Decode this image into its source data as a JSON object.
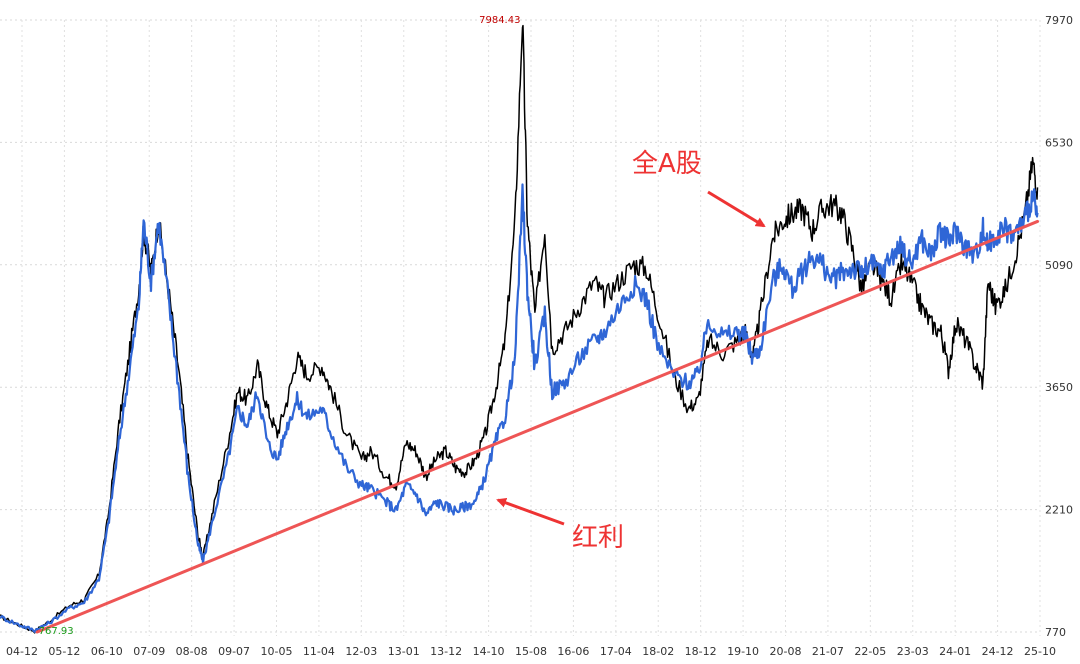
{
  "chart_data": {
    "type": "line",
    "title": "",
    "xlabel": "",
    "ylabel": "",
    "x_ticks": [
      "04-12",
      "05-12",
      "06-10",
      "07-09",
      "08-08",
      "09-07",
      "10-05",
      "11-04",
      "12-03",
      "13-01",
      "13-12",
      "14-10",
      "15-08",
      "16-06",
      "17-04",
      "18-02",
      "18-12",
      "19-10",
      "20-08",
      "21-07",
      "22-05",
      "23-03",
      "24-01",
      "24-12",
      "25-10"
    ],
    "y_ticks": [
      770,
      2210,
      3650,
      5090,
      6530,
      7970
    ],
    "ylim": [
      770,
      7970
    ],
    "xlim": [
      2004.9,
      2025.9
    ],
    "grid": true,
    "series": [
      {
        "name": "全A股",
        "color": "#000000",
        "points": [
          [
            2004.9,
            950
          ],
          [
            2005.3,
            850
          ],
          [
            2005.6,
            780
          ],
          [
            2005.9,
            900
          ],
          [
            2006.3,
            1080
          ],
          [
            2006.6,
            1150
          ],
          [
            2006.9,
            1450
          ],
          [
            2007.1,
            2200
          ],
          [
            2007.3,
            3200
          ],
          [
            2007.5,
            4000
          ],
          [
            2007.7,
            4800
          ],
          [
            2007.8,
            5500
          ],
          [
            2007.95,
            5000
          ],
          [
            2008.1,
            5600
          ],
          [
            2008.3,
            4800
          ],
          [
            2008.5,
            3900
          ],
          [
            2008.7,
            2800
          ],
          [
            2008.9,
            1900
          ],
          [
            2009.0,
            1650
          ],
          [
            2009.2,
            2200
          ],
          [
            2009.5,
            3000
          ],
          [
            2009.7,
            3600
          ],
          [
            2009.9,
            3500
          ],
          [
            2010.1,
            3900
          ],
          [
            2010.3,
            3400
          ],
          [
            2010.5,
            3100
          ],
          [
            2010.7,
            3500
          ],
          [
            2010.9,
            4000
          ],
          [
            2011.1,
            3800
          ],
          [
            2011.4,
            3900
          ],
          [
            2011.6,
            3600
          ],
          [
            2011.9,
            3100
          ],
          [
            2012.2,
            2800
          ],
          [
            2012.4,
            2900
          ],
          [
            2012.7,
            2600
          ],
          [
            2012.9,
            2500
          ],
          [
            2013.1,
            3000
          ],
          [
            2013.3,
            2900
          ],
          [
            2013.5,
            2600
          ],
          [
            2013.7,
            2800
          ],
          [
            2013.9,
            2900
          ],
          [
            2014.1,
            2700
          ],
          [
            2014.3,
            2650
          ],
          [
            2014.5,
            2800
          ],
          [
            2014.7,
            3100
          ],
          [
            2014.9,
            3600
          ],
          [
            2015.1,
            4200
          ],
          [
            2015.3,
            5600
          ],
          [
            2015.45,
            7984
          ],
          [
            2015.55,
            5600
          ],
          [
            2015.7,
            4500
          ],
          [
            2015.9,
            5500
          ],
          [
            2016.05,
            4100
          ],
          [
            2016.3,
            4300
          ],
          [
            2016.6,
            4600
          ],
          [
            2016.9,
            4900
          ],
          [
            2017.1,
            4700
          ],
          [
            2017.4,
            4900
          ],
          [
            2017.7,
            5100
          ],
          [
            2017.95,
            5050
          ],
          [
            2018.2,
            4500
          ],
          [
            2018.5,
            3800
          ],
          [
            2018.8,
            3400
          ],
          [
            2019.0,
            3500
          ],
          [
            2019.2,
            4200
          ],
          [
            2019.5,
            4050
          ],
          [
            2019.8,
            4200
          ],
          [
            2019.95,
            4300
          ],
          [
            2020.1,
            4000
          ],
          [
            2020.25,
            4500
          ],
          [
            2020.5,
            5400
          ],
          [
            2020.7,
            5600
          ],
          [
            2020.9,
            5700
          ],
          [
            2021.1,
            5750
          ],
          [
            2021.3,
            5500
          ],
          [
            2021.5,
            5750
          ],
          [
            2021.7,
            5800
          ],
          [
            2021.9,
            5700
          ],
          [
            2022.1,
            5300
          ],
          [
            2022.3,
            4800
          ],
          [
            2022.5,
            5100
          ],
          [
            2022.7,
            4900
          ],
          [
            2022.9,
            4700
          ],
          [
            2023.1,
            5100
          ],
          [
            2023.3,
            4900
          ],
          [
            2023.5,
            4600
          ],
          [
            2023.7,
            4400
          ],
          [
            2023.9,
            4300
          ],
          [
            2024.05,
            3850
          ],
          [
            2024.2,
            4400
          ],
          [
            2024.4,
            4200
          ],
          [
            2024.6,
            3900
          ],
          [
            2024.75,
            3700
          ],
          [
            2024.85,
            4900
          ],
          [
            2025.0,
            4600
          ],
          [
            2025.2,
            4800
          ],
          [
            2025.4,
            5200
          ],
          [
            2025.6,
            5700
          ],
          [
            2025.75,
            6300
          ],
          [
            2025.85,
            6000
          ]
        ]
      },
      {
        "name": "红利",
        "color": "#2f66d6",
        "points": [
          [
            2004.9,
            950
          ],
          [
            2005.3,
            850
          ],
          [
            2005.6,
            790
          ],
          [
            2005.9,
            880
          ],
          [
            2006.3,
            1050
          ],
          [
            2006.6,
            1120
          ],
          [
            2006.9,
            1400
          ],
          [
            2007.1,
            2100
          ],
          [
            2007.3,
            3000
          ],
          [
            2007.5,
            3800
          ],
          [
            2007.7,
            4600
          ],
          [
            2007.8,
            5600
          ],
          [
            2007.95,
            4900
          ],
          [
            2008.1,
            5600
          ],
          [
            2008.3,
            4700
          ],
          [
            2008.5,
            3700
          ],
          [
            2008.7,
            2600
          ],
          [
            2008.9,
            1800
          ],
          [
            2009.0,
            1600
          ],
          [
            2009.2,
            2100
          ],
          [
            2009.5,
            2800
          ],
          [
            2009.7,
            3400
          ],
          [
            2009.9,
            3200
          ],
          [
            2010.1,
            3600
          ],
          [
            2010.3,
            3000
          ],
          [
            2010.5,
            2800
          ],
          [
            2010.7,
            3200
          ],
          [
            2010.9,
            3500
          ],
          [
            2011.1,
            3300
          ],
          [
            2011.4,
            3400
          ],
          [
            2011.6,
            3100
          ],
          [
            2011.9,
            2700
          ],
          [
            2012.2,
            2500
          ],
          [
            2012.4,
            2450
          ],
          [
            2012.7,
            2300
          ],
          [
            2012.9,
            2200
          ],
          [
            2013.1,
            2500
          ],
          [
            2013.3,
            2400
          ],
          [
            2013.5,
            2150
          ],
          [
            2013.7,
            2300
          ],
          [
            2013.9,
            2250
          ],
          [
            2014.1,
            2200
          ],
          [
            2014.3,
            2250
          ],
          [
            2014.5,
            2300
          ],
          [
            2014.7,
            2600
          ],
          [
            2014.9,
            3000
          ],
          [
            2015.1,
            3300
          ],
          [
            2015.3,
            4000
          ],
          [
            2015.45,
            5900
          ],
          [
            2015.55,
            4800
          ],
          [
            2015.7,
            3900
          ],
          [
            2015.9,
            4500
          ],
          [
            2016.05,
            3600
          ],
          [
            2016.3,
            3700
          ],
          [
            2016.6,
            4000
          ],
          [
            2016.9,
            4200
          ],
          [
            2017.1,
            4300
          ],
          [
            2017.4,
            4600
          ],
          [
            2017.7,
            4850
          ],
          [
            2017.95,
            4700
          ],
          [
            2018.2,
            4100
          ],
          [
            2018.5,
            3800
          ],
          [
            2018.8,
            3700
          ],
          [
            2019.0,
            3800
          ],
          [
            2019.2,
            4450
          ],
          [
            2019.5,
            4250
          ],
          [
            2019.8,
            4300
          ],
          [
            2019.95,
            4250
          ],
          [
            2020.1,
            4000
          ],
          [
            2020.25,
            4100
          ],
          [
            2020.5,
            4900
          ],
          [
            2020.7,
            5100
          ],
          [
            2020.9,
            4800
          ],
          [
            2021.1,
            5000
          ],
          [
            2021.3,
            5200
          ],
          [
            2021.5,
            5100
          ],
          [
            2021.7,
            4900
          ],
          [
            2021.9,
            5000
          ],
          [
            2022.1,
            5050
          ],
          [
            2022.3,
            5000
          ],
          [
            2022.5,
            5100
          ],
          [
            2022.7,
            5000
          ],
          [
            2022.9,
            5200
          ],
          [
            2023.1,
            5300
          ],
          [
            2023.3,
            5100
          ],
          [
            2023.5,
            5400
          ],
          [
            2023.7,
            5200
          ],
          [
            2023.9,
            5500
          ],
          [
            2024.05,
            5350
          ],
          [
            2024.2,
            5500
          ],
          [
            2024.4,
            5300
          ],
          [
            2024.6,
            5200
          ],
          [
            2024.75,
            5500
          ],
          [
            2024.85,
            5300
          ],
          [
            2025.0,
            5450
          ],
          [
            2025.2,
            5500
          ],
          [
            2025.4,
            5450
          ],
          [
            2025.6,
            5650
          ],
          [
            2025.75,
            5900
          ],
          [
            2025.85,
            5700
          ]
        ]
      }
    ],
    "trend_line": {
      "color": "#ee5555",
      "from": [
        2005.65,
        770
      ],
      "to": [
        2025.85,
        5600
      ]
    },
    "max_label": {
      "text": "7984.43",
      "x": 2015.45,
      "y": 7984
    },
    "min_label": {
      "text": "767.93",
      "x": 2005.6,
      "y": 767.93
    },
    "annotations": [
      {
        "text": "全A股",
        "color": "#ee3333"
      },
      {
        "text": "红利",
        "color": "#ee3333"
      }
    ]
  }
}
